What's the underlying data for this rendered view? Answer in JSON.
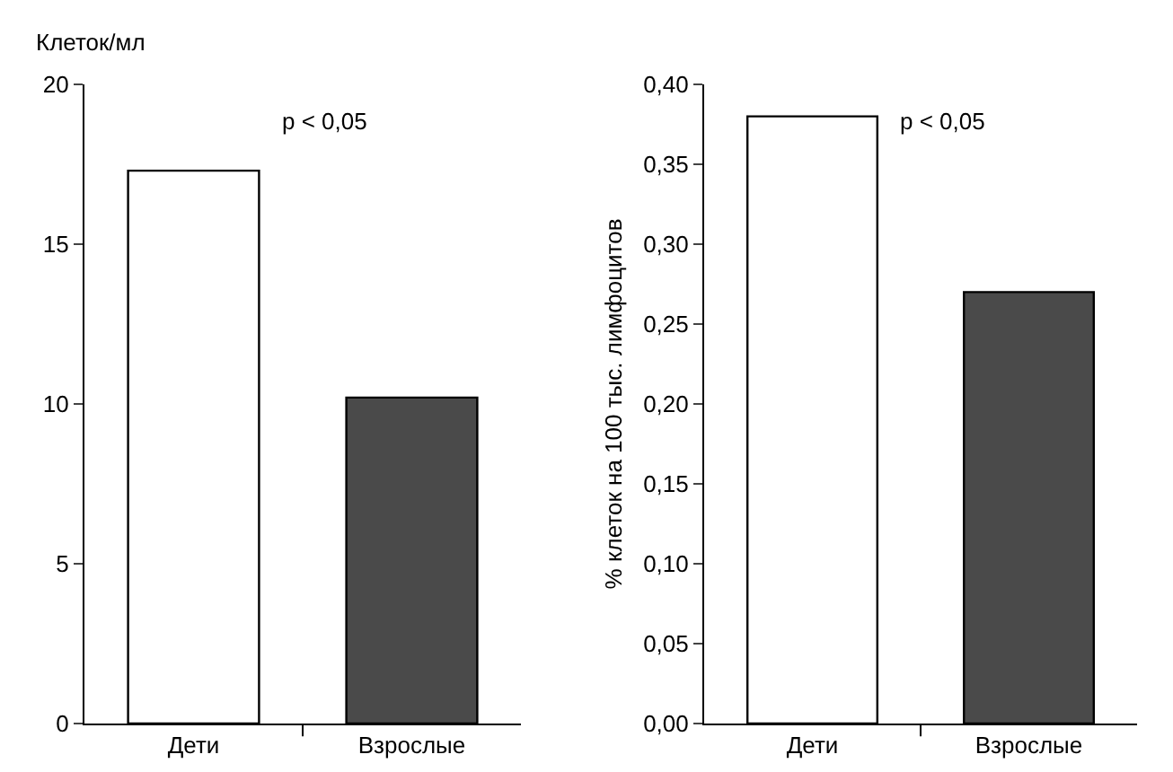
{
  "chart_data": [
    {
      "type": "bar",
      "ylabel": "Клеток/мл",
      "categories": [
        "Дети",
        "Взрослые"
      ],
      "values": [
        17.3,
        10.2
      ],
      "colors": [
        "#ffffff",
        "#4a4a4a"
      ],
      "ylim": [
        0,
        20
      ],
      "yticks": [
        0,
        5,
        10,
        15,
        20
      ],
      "annotations": [
        "p < 0,05"
      ],
      "grid": false,
      "legend": false
    },
    {
      "type": "bar",
      "ylabel": "% клеток на 100 тыс. лимфоцитов",
      "categories": [
        "Дети",
        "Взрослые"
      ],
      "values": [
        0.38,
        0.27
      ],
      "colors": [
        "#ffffff",
        "#4a4a4a"
      ],
      "ylim": [
        0,
        0.4
      ],
      "yticks": [
        {
          "value": 0,
          "label": "0,00"
        },
        {
          "value": 0.05,
          "label": "0,05"
        },
        {
          "value": 0.1,
          "label": "0,10"
        },
        {
          "value": 0.15,
          "label": "0,15"
        },
        {
          "value": 0.2,
          "label": "0,20"
        },
        {
          "value": 0.25,
          "label": "0,25"
        },
        {
          "value": 0.3,
          "label": "0,30"
        },
        {
          "value": 0.35,
          "label": "0,35"
        },
        {
          "value": 0.4,
          "label": "0,40"
        }
      ],
      "annotations": [
        "p < 0,05"
      ],
      "grid": false,
      "legend": false
    }
  ]
}
